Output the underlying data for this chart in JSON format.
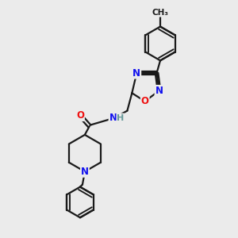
{
  "bg_color": "#ebebeb",
  "bond_color": "#1a1a1a",
  "N_color": "#1010ee",
  "O_color": "#ee1010",
  "H_color": "#669999",
  "line_width": 1.6,
  "font_size_atom": 8.5,
  "fig_width": 3.0,
  "fig_height": 3.0,
  "dpi": 100,
  "xlim": [
    0,
    10
  ],
  "ylim": [
    0,
    10
  ]
}
